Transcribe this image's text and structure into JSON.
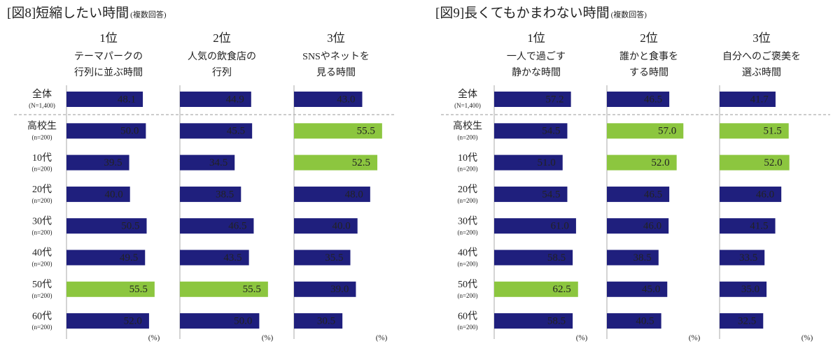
{
  "chart_data": [
    {
      "type": "bar",
      "title": "[図8]短縮したい時間",
      "subtitle": "(複数回答)",
      "categories": [
        "全体",
        "高校生",
        "10代",
        "20代",
        "30代",
        "40代",
        "50代",
        "60代"
      ],
      "category_notes": [
        "(N=1,400)",
        "(n=200)",
        "(n=200)",
        "(n=200)",
        "(n=200)",
        "(n=200)",
        "(n=200)",
        "(n=200)"
      ],
      "unit": "(%)",
      "xlim": [
        0,
        71
      ],
      "color": "#1f1f7d",
      "highlight_color": "#8cc63f",
      "series": [
        {
          "name": "1位",
          "label_lines": [
            "テーマパークの",
            "行列に並ぶ時間"
          ],
          "values": [
            48.1,
            50.0,
            39.5,
            40.0,
            50.5,
            49.5,
            55.5,
            52.0
          ],
          "value_labels": [
            "48.1",
            "50.0",
            "39.5",
            "40.0",
            "50.5",
            "49.5",
            "55.5",
            "52.0"
          ],
          "highlighted": [
            6
          ]
        },
        {
          "name": "2位",
          "label_lines": [
            "人気の飲食店の",
            "行列"
          ],
          "values": [
            44.9,
            45.5,
            34.5,
            38.5,
            46.5,
            43.5,
            55.5,
            50.0
          ],
          "value_labels": [
            "44.9",
            "45.5",
            "34.5",
            "38.5",
            "46.5",
            "43.5",
            "55.5",
            "50.0"
          ],
          "highlighted": [
            6
          ]
        },
        {
          "name": "3位",
          "label_lines": [
            "SNSやネットを",
            "見る時間"
          ],
          "values": [
            43.0,
            55.5,
            52.5,
            48.0,
            40.0,
            35.5,
            39.0,
            30.5
          ],
          "value_labels": [
            "43.0",
            "55.5",
            "52.5",
            "48.0",
            "40.0",
            "35.5",
            "39.0",
            "30.5"
          ],
          "highlighted": [
            1,
            2
          ]
        }
      ]
    },
    {
      "type": "bar",
      "title": "[図9]長くてもかまわない時間",
      "subtitle": "(複数回答)",
      "categories": [
        "全体",
        "高校生",
        "10代",
        "20代",
        "30代",
        "40代",
        "50代",
        "60代"
      ],
      "category_notes": [
        "(N=1,400)",
        "(n=200)",
        "(n=200)",
        "(n=200)",
        "(n=200)",
        "(n=200)",
        "(n=200)",
        "(n=200)"
      ],
      "unit": "(%)",
      "xlim": [
        0,
        84
      ],
      "color": "#1f1f7d",
      "highlight_color": "#8cc63f",
      "series": [
        {
          "name": "1位",
          "label_lines": [
            "一人で過ごす",
            "静かな時間"
          ],
          "values": [
            57.2,
            54.5,
            51.0,
            54.5,
            61.0,
            58.5,
            62.5,
            58.5
          ],
          "value_labels": [
            "57.2",
            "54.5",
            "51.0",
            "54.5",
            "61.0",
            "58.5",
            "62.5",
            "58.5"
          ],
          "highlighted": [
            6
          ]
        },
        {
          "name": "2位",
          "label_lines": [
            "誰かと食事を",
            "する時間"
          ],
          "values": [
            46.5,
            57.0,
            52.0,
            46.5,
            46.0,
            38.5,
            45.0,
            40.5
          ],
          "value_labels": [
            "46.5",
            "57.0",
            "52.0",
            "46.5",
            "46.0",
            "38.5",
            "45.0",
            "40.5"
          ],
          "highlighted": [
            1,
            2
          ]
        },
        {
          "name": "3位",
          "label_lines": [
            "自分へのご褒美を",
            "選ぶ時間"
          ],
          "values": [
            41.7,
            51.5,
            52.0,
            46.0,
            41.5,
            33.5,
            35.0,
            32.5
          ],
          "value_labels": [
            "41.7",
            "51.5",
            "52.0",
            "46.0",
            "41.5",
            "33.5",
            "35.0",
            "32.5"
          ],
          "highlighted": [
            1,
            2
          ]
        }
      ]
    }
  ]
}
